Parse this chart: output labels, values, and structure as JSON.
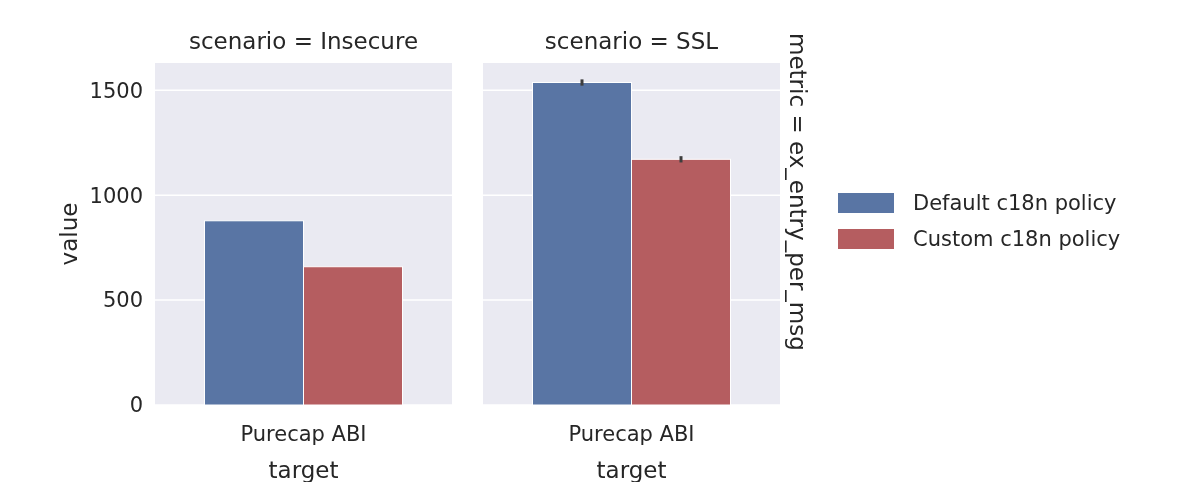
{
  "chart_data": [
    {
      "type": "bar",
      "title": "scenario = Insecure",
      "xlabel": "target",
      "ylabel": "value",
      "categories": [
        "Purecap ABI"
      ],
      "ylim": [
        0,
        1630
      ],
      "yticks": [
        0,
        500,
        1000,
        1500
      ],
      "grid": "y",
      "legend": false,
      "series": [
        {
          "color": "#5975a4",
          "values": [
            878
          ]
        },
        {
          "color": "#b55d60",
          "values": [
            659
          ]
        }
      ]
    },
    {
      "type": "bar",
      "title": "scenario = SSL",
      "xlabel": "target",
      "categories": [
        "Purecap ABI"
      ],
      "ylim": [
        0,
        1630
      ],
      "yticks": [
        0,
        500,
        1000,
        1500
      ],
      "grid": "y",
      "legend": "right",
      "tick_labels": "x",
      "annotations": [
        "metric = ex_entry_per_msg"
      ],
      "series": [
        {
          "name": "Default c18n policy",
          "color": "#5975a4",
          "values": [
            1537
          ],
          "errors": [
            15
          ]
        },
        {
          "name": "Custom c18n policy",
          "color": "#b55d60",
          "values": [
            1171
          ],
          "errors": [
            15
          ]
        }
      ]
    }
  ]
}
